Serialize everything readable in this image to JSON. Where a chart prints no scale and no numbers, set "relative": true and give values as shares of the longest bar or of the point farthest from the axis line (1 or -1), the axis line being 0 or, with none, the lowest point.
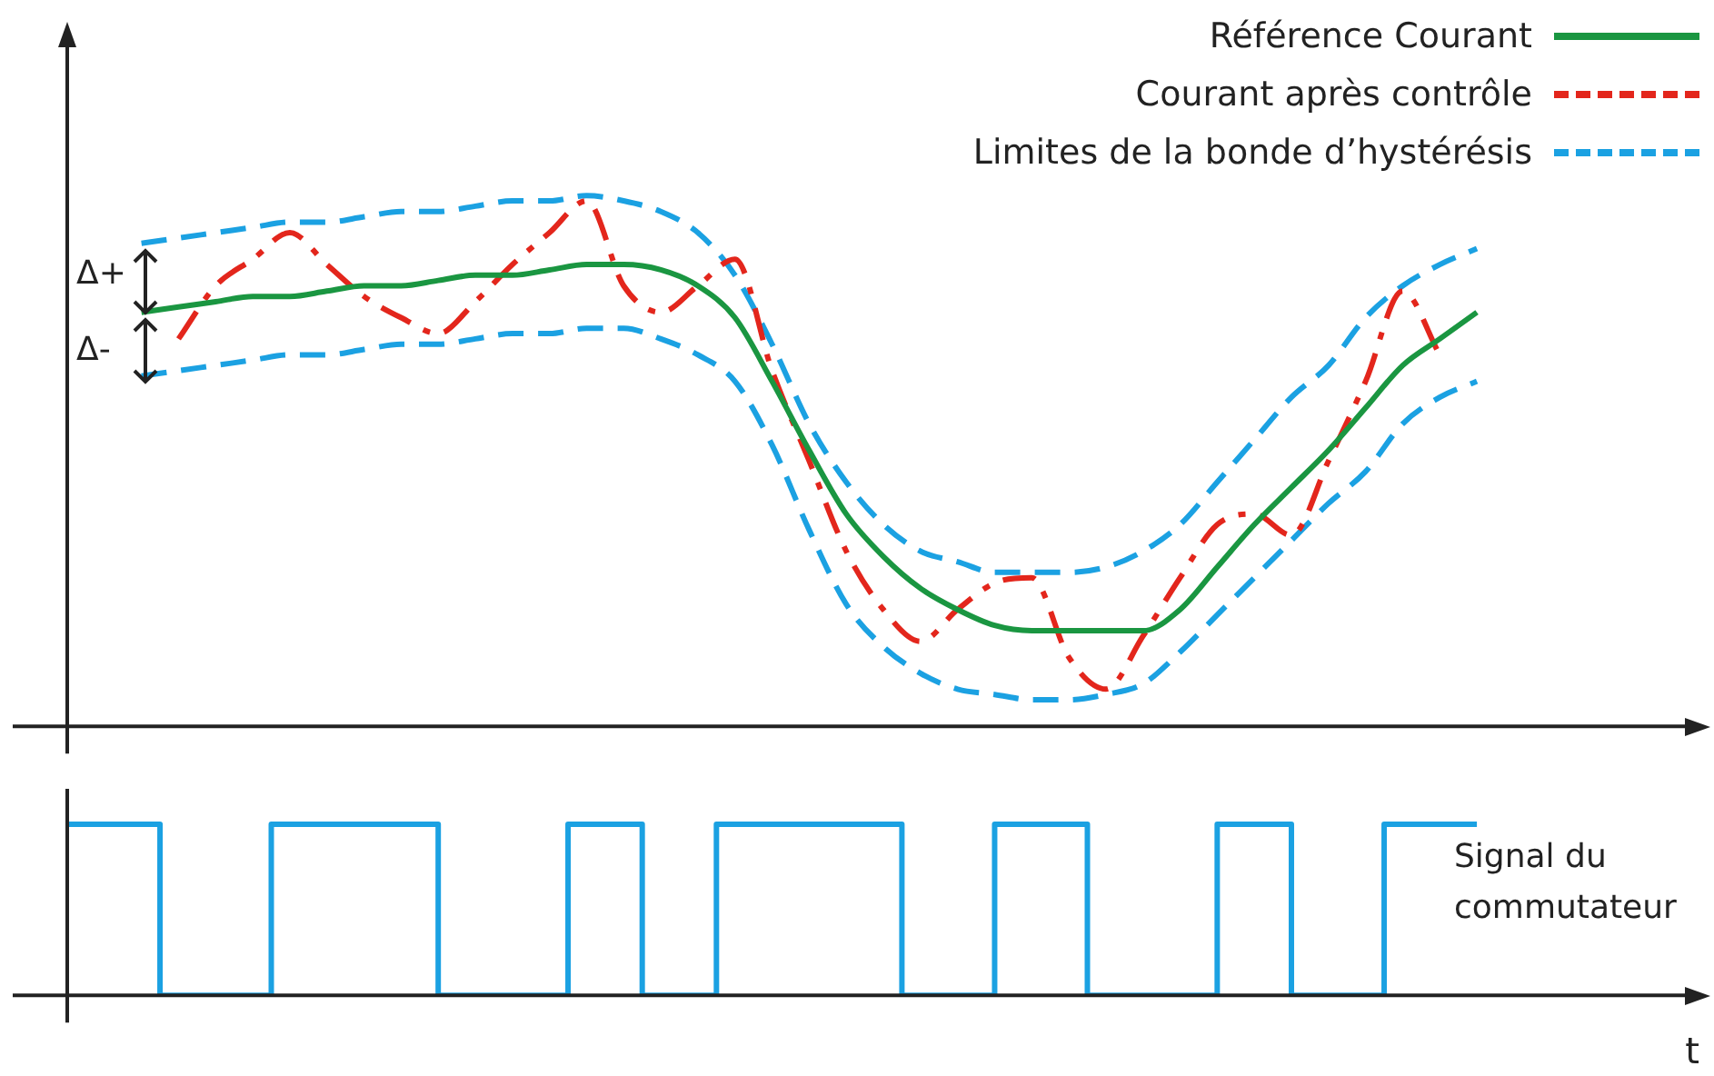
{
  "chart_data": [
    {
      "type": "line",
      "relative": true,
      "legend": "top right",
      "categories": [
        null,
        null,
        null,
        null,
        null,
        null,
        null,
        null,
        null,
        null,
        null,
        null,
        null,
        null,
        null,
        null,
        null,
        null,
        null,
        null,
        null,
        null,
        null,
        null,
        null,
        null,
        null,
        null,
        null,
        null,
        null,
        null,
        null,
        null,
        null,
        null,
        null,
        null,
        null,
        null,
        null,
        null,
        null,
        null,
        null
      ],
      "annotations": [
        "Δ+",
        "Δ-"
      ],
      "series": [
        {
          "name": "Référence Courant",
          "color": "#1a9641",
          "line_style": "solid",
          "values": [
            null,
            null,
            0.78,
            0.79,
            0.8,
            0.81,
            0.81,
            0.82,
            0.83,
            0.83,
            0.84,
            0.85,
            0.85,
            0.86,
            0.87,
            0.87,
            0.86,
            0.83,
            0.77,
            0.65,
            0.52,
            0.4,
            0.32,
            0.26,
            0.22,
            0.19,
            0.18,
            0.18,
            0.18,
            0.18,
            0.22,
            0.3,
            0.38,
            0.45,
            0.52,
            0.6,
            0.68,
            0.73,
            0.78,
            null,
            null,
            null,
            null,
            null,
            null
          ]
        },
        {
          "name": "Courant après contrôle",
          "color": "#e3261c",
          "line_style": "dashdot",
          "values": [
            null,
            null,
            null,
            0.73,
            0.83,
            0.88,
            0.93,
            0.87,
            0.81,
            0.77,
            0.74,
            0.8,
            0.87,
            0.93,
            0.99,
            0.83,
            0.78,
            0.83,
            0.88,
            0.67,
            0.5,
            0.33,
            0.22,
            0.16,
            0.22,
            0.27,
            0.28,
            0.13,
            0.07,
            0.17,
            0.28,
            0.38,
            0.4,
            0.36,
            0.5,
            0.65,
            0.82,
            0.7,
            null,
            null,
            null,
            null,
            null,
            null,
            null
          ]
        },
        {
          "name": "Limites de la bonde d’hystérésis",
          "color": "#1ba1e2",
          "line_style": "dashed",
          "values": [
            null,
            null,
            0.91,
            0.92,
            0.93,
            0.94,
            0.95,
            0.95,
            0.96,
            0.97,
            0.97,
            0.98,
            0.99,
            0.99,
            1,
            0.99,
            0.97,
            0.93,
            0.85,
            0.72,
            0.57,
            0.46,
            0.38,
            0.33,
            0.31,
            0.29,
            0.29,
            0.29,
            0.3,
            0.33,
            0.38,
            0.46,
            0.54,
            0.62,
            0.68,
            0.77,
            0.83,
            0.87,
            0.9,
            null,
            null,
            null,
            null,
            null,
            null
          ]
        },
        {
          "color": "#1ba1e2",
          "line_style": "dashed",
          "values": [
            null,
            null,
            0.66,
            0.67,
            0.68,
            0.69,
            0.7,
            0.7,
            0.71,
            0.72,
            0.72,
            0.73,
            0.74,
            0.74,
            0.75,
            0.75,
            0.73,
            0.7,
            0.65,
            0.53,
            0.37,
            0.23,
            0.15,
            0.1,
            0.07,
            0.06,
            0.05,
            0.05,
            0.06,
            0.08,
            0.14,
            0.21,
            0.28,
            0.35,
            0.42,
            0.48,
            0.57,
            0.62,
            0.65,
            null,
            null,
            null,
            null,
            null,
            null
          ]
        }
      ]
    },
    {
      "type": "step",
      "relative": true,
      "xlabel": "t",
      "categories": [
        null,
        null,
        null,
        null,
        null,
        null,
        null,
        null,
        null,
        null,
        null,
        null,
        null,
        null,
        null,
        null,
        null,
        null,
        null,
        null,
        null,
        null,
        null,
        null,
        null,
        null,
        null,
        null,
        null,
        null,
        null,
        null,
        null,
        null,
        null,
        null,
        null,
        null,
        null,
        null,
        null,
        null,
        null,
        null,
        null,
        null,
        null,
        null,
        null,
        null,
        null,
        null,
        null,
        null,
        null,
        null,
        null,
        null,
        null,
        null,
        null,
        null,
        null,
        null,
        null,
        null,
        null,
        null,
        null,
        null,
        null,
        null,
        null,
        null,
        null,
        null,
        null,
        null,
        null,
        null,
        null,
        null,
        null,
        null,
        null,
        null,
        null,
        null,
        null
      ],
      "series": [
        {
          "name": "Signal du commutateur",
          "color": "#1ba1e2",
          "values": [
            1,
            1,
            1,
            1,
            1,
            1,
            0,
            0,
            0,
            0,
            0,
            0,
            1,
            1,
            1,
            1,
            1,
            1,
            1,
            1,
            1,
            0,
            0,
            0,
            0,
            0,
            0,
            0,
            1,
            1,
            1,
            1,
            0,
            0,
            0,
            0,
            1,
            1,
            1,
            1,
            1,
            1,
            1,
            1,
            1,
            1,
            0,
            0,
            0,
            0,
            0,
            1,
            1,
            1,
            1,
            1,
            0,
            0,
            0,
            0,
            0,
            0,
            0,
            1,
            1,
            1,
            1,
            0,
            0,
            0,
            0,
            0,
            1,
            1,
            1,
            1,
            1,
            null,
            null,
            null,
            null,
            null,
            null,
            null,
            null,
            null,
            null,
            null,
            null
          ]
        }
      ]
    }
  ]
}
